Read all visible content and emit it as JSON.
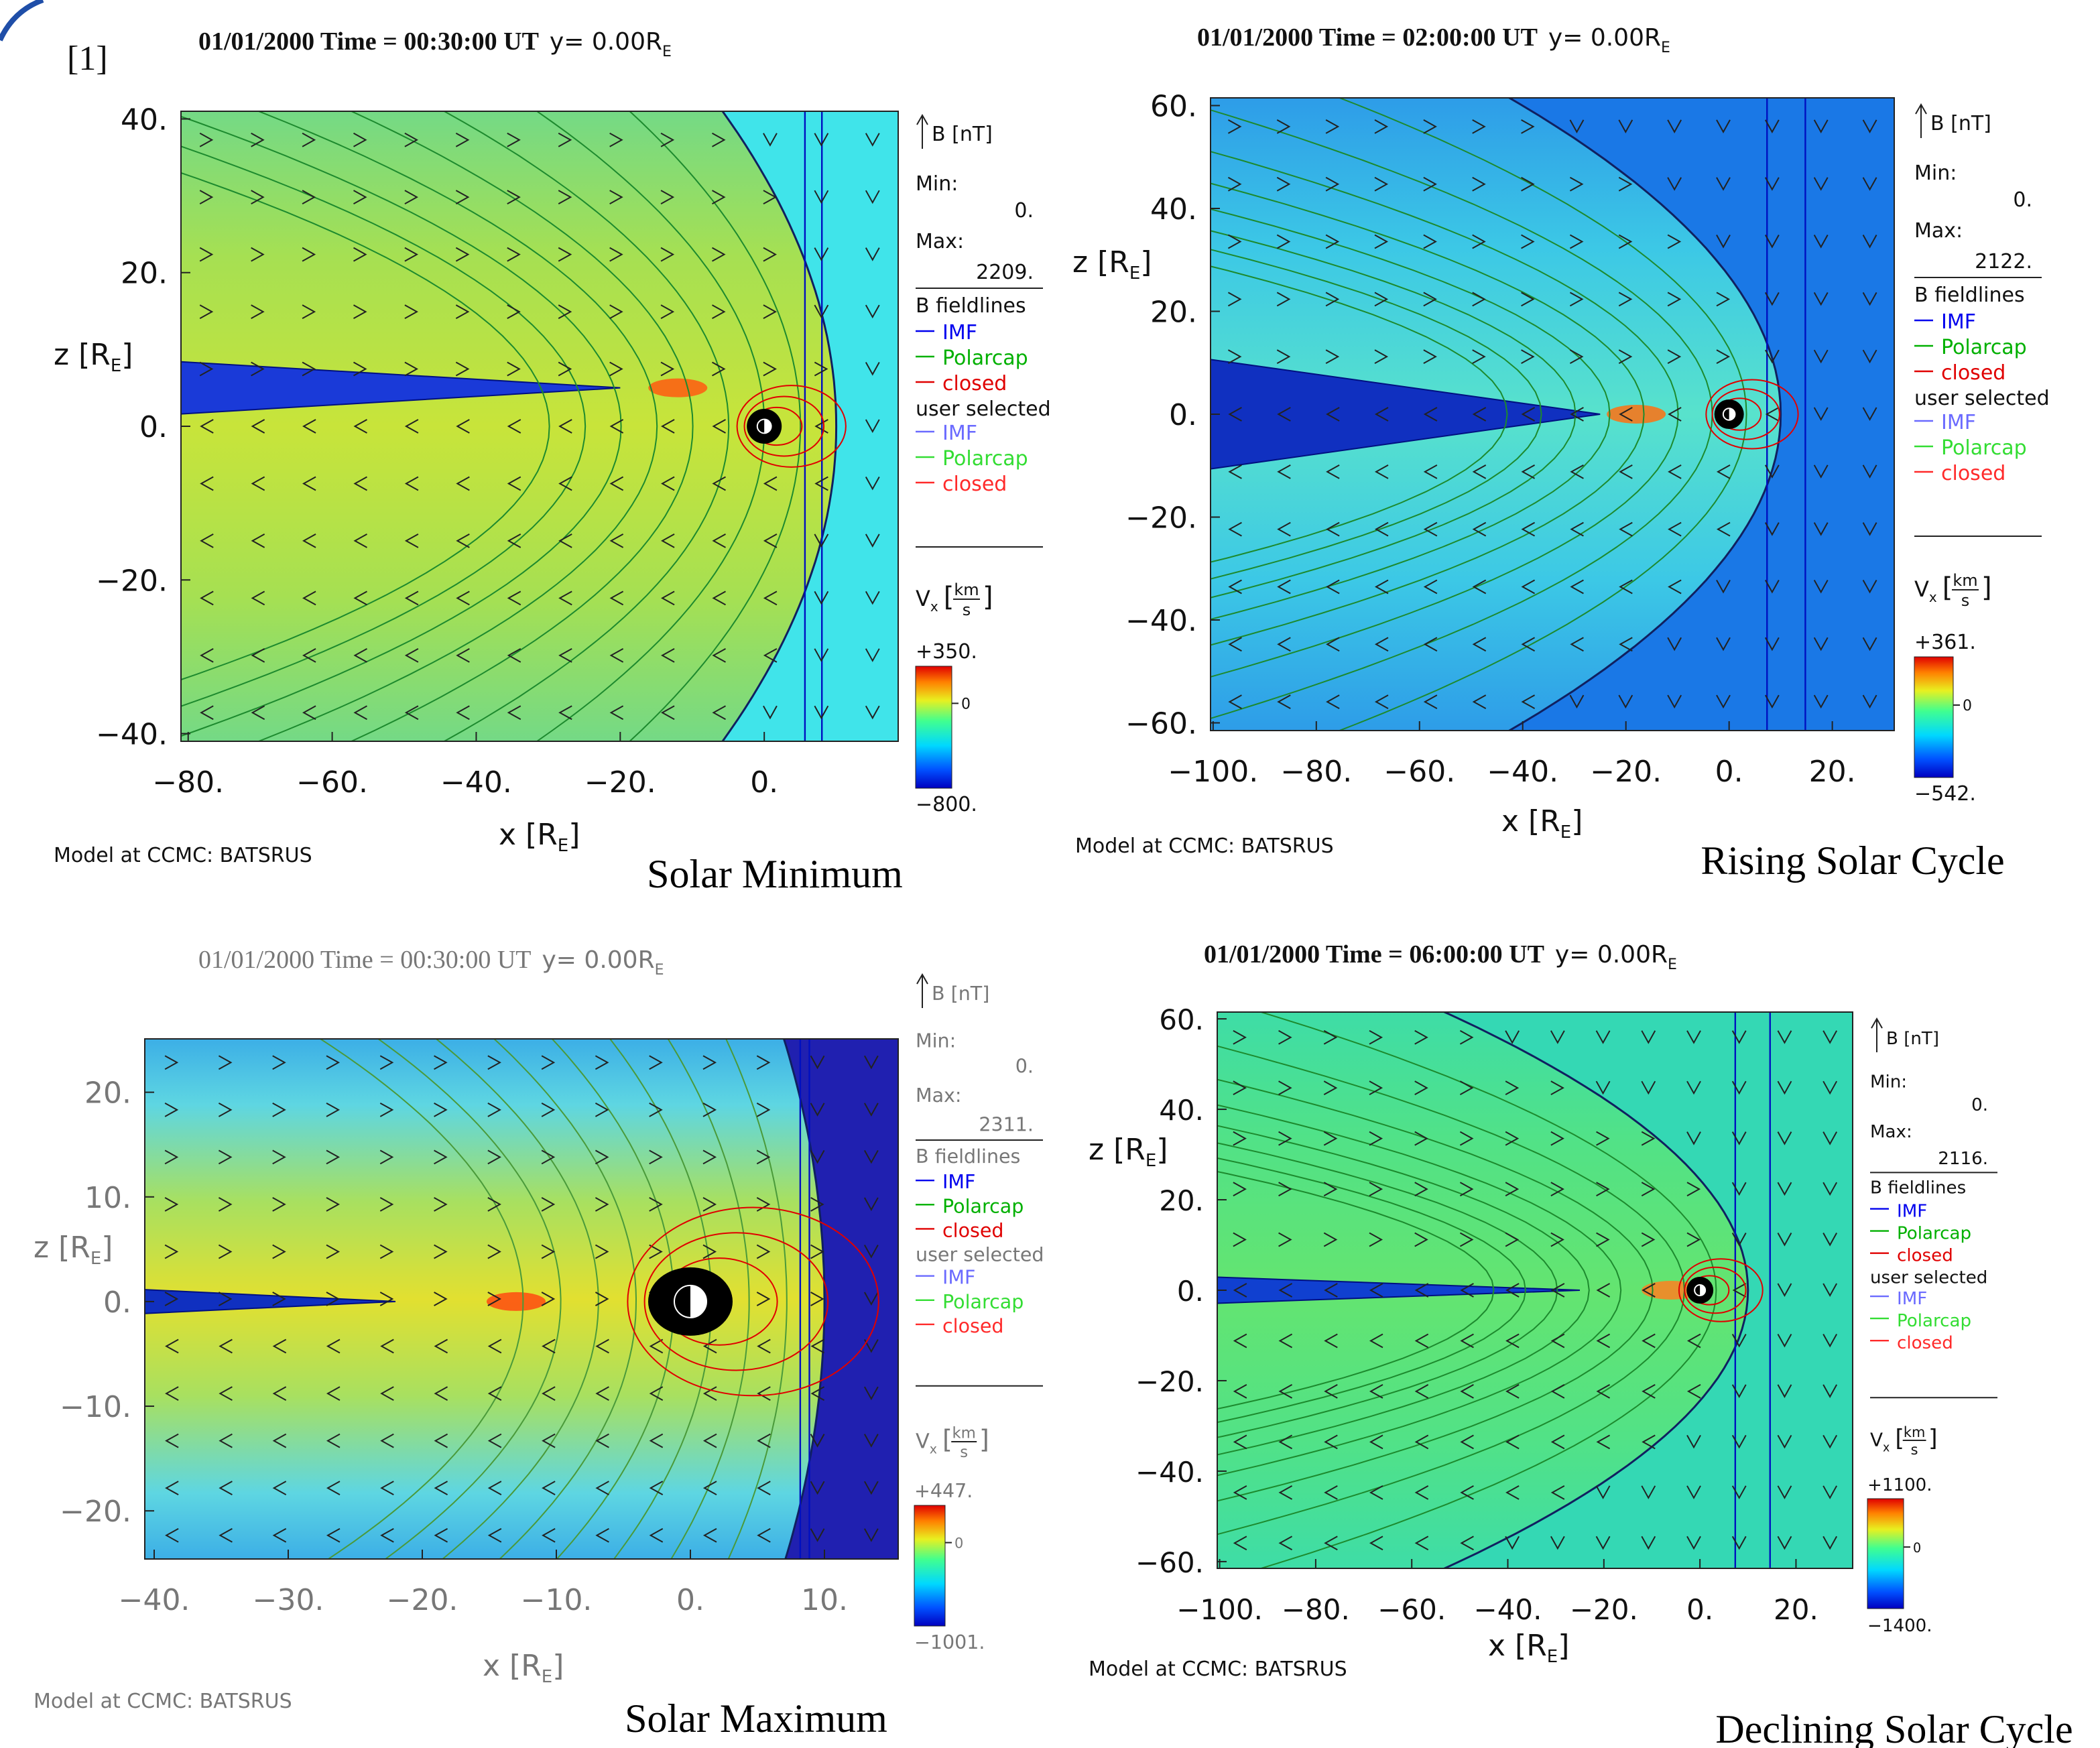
{
  "chart_data": [
    {
      "type": "field",
      "label": "[1]",
      "title": "01/01/2000 Time = 00:30:00 UT",
      "title_y": "y= 0.00R",
      "title_y_sub": "E",
      "xlabel": "x [R",
      "ylabel": "z [R",
      "axis_sub": "E",
      "axis_close": "]",
      "xlim": [
        -81,
        18.6
      ],
      "ylim": [
        -41,
        41
      ],
      "xticks": [
        {
          "value": -80,
          "label": "−80."
        },
        {
          "value": -60,
          "label": "−60."
        },
        {
          "value": -40,
          "label": "−40."
        },
        {
          "value": -20,
          "label": "−20."
        },
        {
          "value": 0,
          "label": "0."
        }
      ],
      "yticks": [
        {
          "value": 40,
          "label": "40."
        },
        {
          "value": 20,
          "label": "20."
        },
        {
          "value": 0,
          "label": "0."
        },
        {
          "value": -20,
          "label": "−20."
        },
        {
          "value": -40,
          "label": "−40."
        }
      ],
      "legend": {
        "field": "B [nT]",
        "min_label": "Min:",
        "min": {
          "value": 0,
          "label": "0."
        },
        "max_label": "Max:",
        "max": {
          "value": 2209,
          "label": "2209."
        },
        "heading": "B fieldlines",
        "series": [
          {
            "name": "IMF",
            "color": "#0000ee"
          },
          {
            "name": "Polarcap",
            "color": "#00b000"
          },
          {
            "name": "closed",
            "color": "#e00000"
          }
        ],
        "user_heading": "user selected",
        "user_series": [
          {
            "name": "IMF",
            "color": "#6a6aff"
          },
          {
            "name": "Polarcap",
            "color": "#33dd33"
          },
          {
            "name": "closed",
            "color": "#ff2a2a"
          }
        ]
      },
      "colorbar": {
        "symbol": "V",
        "sub": "x",
        "open": "[",
        "num": "km",
        "den": "s",
        "close": "]",
        "lim": [
          {
            "value": -800,
            "label": "−800."
          },
          {
            "value": 350,
            "label": "+350."
          }
        ],
        "ticks": [
          0
        ]
      },
      "caption": "Solar Minimum",
      "credit": "Model at CCMC: BATSRUS"
    },
    {
      "type": "field",
      "title": "01/01/2000 Time = 02:00:00 UT",
      "title_y": "y= 0.00R",
      "title_y_sub": "E",
      "xlabel": "x [R",
      "ylabel": "z [R",
      "axis_sub": "E",
      "axis_close": "]",
      "xlim": [
        -100.5,
        32
      ],
      "ylim": [
        -61.5,
        61.5
      ],
      "xticks": [
        {
          "value": -100,
          "label": "−100."
        },
        {
          "value": -80,
          "label": "−80."
        },
        {
          "value": -60,
          "label": "−60."
        },
        {
          "value": -40,
          "label": "−40."
        },
        {
          "value": -20,
          "label": "−20."
        },
        {
          "value": 0,
          "label": "0."
        },
        {
          "value": 20,
          "label": "20."
        }
      ],
      "yticks": [
        {
          "value": 60,
          "label": "60."
        },
        {
          "value": 40,
          "label": "40."
        },
        {
          "value": 20,
          "label": "20."
        },
        {
          "value": 0,
          "label": "0."
        },
        {
          "value": -20,
          "label": "−20."
        },
        {
          "value": -40,
          "label": "−40."
        },
        {
          "value": -60,
          "label": "−60."
        }
      ],
      "legend": {
        "field": "B [nT]",
        "min_label": "Min:",
        "min": {
          "value": 0,
          "label": "0."
        },
        "max_label": "Max:",
        "max": {
          "value": 2122,
          "label": "2122."
        },
        "heading": "B fieldlines",
        "series": [
          {
            "name": "IMF",
            "color": "#0000ee"
          },
          {
            "name": "Polarcap",
            "color": "#00b000"
          },
          {
            "name": "closed",
            "color": "#e00000"
          }
        ],
        "user_heading": "user selected",
        "user_series": [
          {
            "name": "IMF",
            "color": "#6a6aff"
          },
          {
            "name": "Polarcap",
            "color": "#33dd33"
          },
          {
            "name": "closed",
            "color": "#ff2a2a"
          }
        ]
      },
      "colorbar": {
        "symbol": "V",
        "sub": "x",
        "open": "[",
        "num": "km",
        "den": "s",
        "close": "]",
        "lim": [
          {
            "value": -542,
            "label": "−542."
          },
          {
            "value": 361,
            "label": "+361."
          }
        ],
        "ticks": [
          0
        ]
      },
      "caption": "Rising Solar Cycle",
      "credit": "Model at CCMC: BATSRUS"
    },
    {
      "type": "field",
      "title": "01/01/2000 Time = 00:30:00 UT",
      "title_y": "y= 0.00R",
      "title_y_sub": "E",
      "xlabel": "x [R",
      "ylabel": "z [R",
      "axis_sub": "E",
      "axis_close": "]",
      "xlim": [
        -40.7,
        15.5
      ],
      "ylim": [
        -24.6,
        25.1
      ],
      "xticks": [
        {
          "value": -40,
          "label": "−40."
        },
        {
          "value": -30,
          "label": "−30."
        },
        {
          "value": -20,
          "label": "−20."
        },
        {
          "value": -10,
          "label": "−10."
        },
        {
          "value": 0,
          "label": "0."
        },
        {
          "value": 10,
          "label": "10."
        }
      ],
      "yticks": [
        {
          "value": 20,
          "label": "20."
        },
        {
          "value": 10,
          "label": "10."
        },
        {
          "value": 0,
          "label": "0."
        },
        {
          "value": -10,
          "label": "−10."
        },
        {
          "value": -20,
          "label": "−20."
        }
      ],
      "legend": {
        "field": "B [nT]",
        "min_label": "Min:",
        "min": {
          "value": 0,
          "label": "0."
        },
        "max_label": "Max:",
        "max": {
          "value": 2311,
          "label": "2311."
        },
        "heading": "B fieldlines",
        "series": [
          {
            "name": "IMF",
            "color": "#0000ee"
          },
          {
            "name": "Polarcap",
            "color": "#00b000"
          },
          {
            "name": "closed",
            "color": "#e00000"
          }
        ],
        "user_heading": "user selected",
        "user_series": [
          {
            "name": "IMF",
            "color": "#6a6aff"
          },
          {
            "name": "Polarcap",
            "color": "#33dd33"
          },
          {
            "name": "closed",
            "color": "#ff2a2a"
          }
        ]
      },
      "colorbar": {
        "symbol": "V",
        "sub": "x",
        "open": "[",
        "num": "km",
        "den": "s",
        "close": "]",
        "lim": [
          {
            "value": -1001,
            "label": "−1001."
          },
          {
            "value": 447,
            "label": "+447."
          }
        ],
        "ticks": [
          0
        ]
      },
      "caption": "Solar Maximum",
      "credit": "Model at CCMC: BATSRUS"
    },
    {
      "type": "field",
      "title": "01/01/2000 Time = 06:00:00 UT",
      "title_y": "y= 0.00R",
      "title_y_sub": "E",
      "xlabel": "x [R",
      "ylabel": "z [R",
      "axis_sub": "E",
      "axis_close": "]",
      "xlim": [
        -100.5,
        31.8
      ],
      "ylim": [
        -61.5,
        61.5
      ],
      "xticks": [
        {
          "value": -100,
          "label": "−100."
        },
        {
          "value": -80,
          "label": "−80."
        },
        {
          "value": -60,
          "label": "−60."
        },
        {
          "value": -40,
          "label": "−40."
        },
        {
          "value": -20,
          "label": "−20."
        },
        {
          "value": 0,
          "label": "0."
        },
        {
          "value": 20,
          "label": "20."
        }
      ],
      "yticks": [
        {
          "value": 60,
          "label": "60."
        },
        {
          "value": 40,
          "label": "40."
        },
        {
          "value": 20,
          "label": "20."
        },
        {
          "value": 0,
          "label": "0."
        },
        {
          "value": -20,
          "label": "−20."
        },
        {
          "value": -40,
          "label": "−40."
        },
        {
          "value": -60,
          "label": "−60."
        }
      ],
      "legend": {
        "field": "B [nT]",
        "min_label": "Min:",
        "min": {
          "value": 0,
          "label": "0."
        },
        "max_label": "Max:",
        "max": {
          "value": 2116,
          "label": "2116."
        },
        "heading": "B fieldlines",
        "series": [
          {
            "name": "IMF",
            "color": "#0000ee"
          },
          {
            "name": "Polarcap",
            "color": "#00b000"
          },
          {
            "name": "closed",
            "color": "#e00000"
          }
        ],
        "user_heading": "user selected",
        "user_series": [
          {
            "name": "IMF",
            "color": "#6a6aff"
          },
          {
            "name": "Polarcap",
            "color": "#33dd33"
          },
          {
            "name": "closed",
            "color": "#ff2a2a"
          }
        ]
      },
      "colorbar": {
        "symbol": "V",
        "sub": "x",
        "open": "[",
        "num": "km",
        "den": "s",
        "close": "]",
        "lim": [
          {
            "value": -1400,
            "label": "−1400."
          },
          {
            "value": 1100,
            "label": "+1100."
          }
        ],
        "ticks": [
          0
        ]
      },
      "caption": "Declining Solar Cycle",
      "credit": "Model at CCMC: BATSRUS"
    }
  ]
}
